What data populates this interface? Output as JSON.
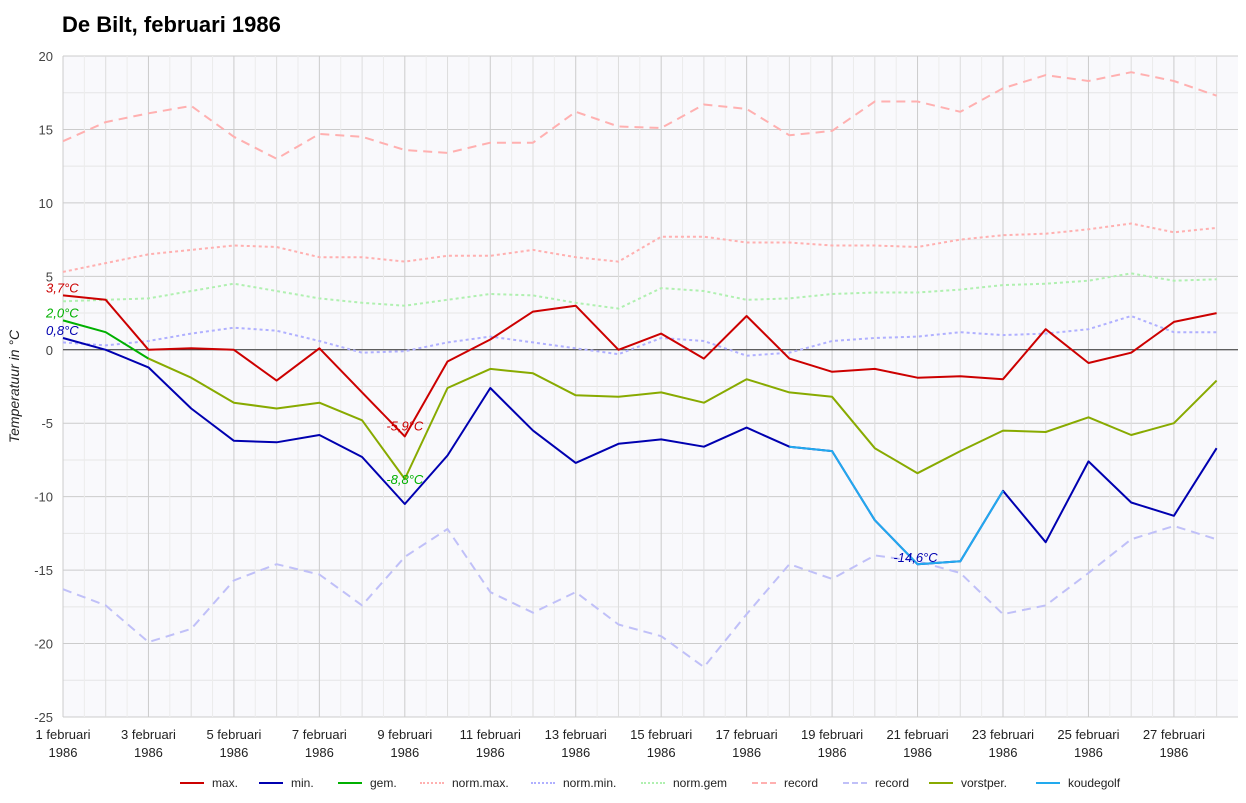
{
  "chart_data": {
    "type": "line",
    "title": "De Bilt, februari 1986",
    "xlabel": "",
    "ylabel": "Temperatuur in °C",
    "ylim": [
      -25,
      20
    ],
    "yticks": [
      20,
      15,
      10,
      5,
      0,
      -5,
      -10,
      -15,
      -20,
      -25
    ],
    "grid": true,
    "legend_position": "bottom",
    "days": [
      1,
      2,
      3,
      4,
      5,
      6,
      7,
      8,
      9,
      10,
      11,
      12,
      13,
      14,
      15,
      16,
      17,
      18,
      19,
      20,
      21,
      22,
      23,
      24,
      25,
      26,
      27,
      28
    ],
    "x_tick_labels": [
      {
        "day": 1,
        "line1": "1 februari",
        "line2": "1986"
      },
      {
        "day": 3,
        "line1": "3 februari",
        "line2": "1986"
      },
      {
        "day": 5,
        "line1": "5 februari",
        "line2": "1986"
      },
      {
        "day": 7,
        "line1": "7 februari",
        "line2": "1986"
      },
      {
        "day": 9,
        "line1": "9 februari",
        "line2": "1986"
      },
      {
        "day": 11,
        "line1": "11 februari",
        "line2": "1986"
      },
      {
        "day": 13,
        "line1": "13 februari",
        "line2": "1986"
      },
      {
        "day": 15,
        "line1": "15 februari",
        "line2": "1986"
      },
      {
        "day": 17,
        "line1": "17 februari",
        "line2": "1986"
      },
      {
        "day": 19,
        "line1": "19 februari",
        "line2": "1986"
      },
      {
        "day": 21,
        "line1": "21 februari",
        "line2": "1986"
      },
      {
        "day": 23,
        "line1": "23 februari",
        "line2": "1986"
      },
      {
        "day": 25,
        "line1": "25 februari",
        "line2": "1986"
      },
      {
        "day": 27,
        "line1": "27 februari",
        "line2": "1986"
      }
    ],
    "series": [
      {
        "key": "record_max",
        "name": "record",
        "color": "#ffb0b0",
        "style": "dashed",
        "values": [
          14.2,
          15.5,
          16.1,
          16.6,
          14.5,
          13.0,
          14.7,
          14.5,
          13.6,
          13.4,
          14.1,
          14.1,
          16.2,
          15.2,
          15.1,
          16.7,
          16.4,
          14.6,
          14.9,
          16.9,
          16.9,
          16.2,
          17.8,
          18.7,
          18.3,
          18.9,
          18.3,
          17.3
        ]
      },
      {
        "key": "norm_max",
        "name": "norm.max.",
        "color": "#ffb0b0",
        "style": "dotted",
        "values": [
          5.3,
          5.9,
          6.5,
          6.8,
          7.1,
          7.0,
          6.3,
          6.3,
          6.0,
          6.4,
          6.4,
          6.8,
          6.3,
          6.0,
          7.7,
          7.7,
          7.3,
          7.3,
          7.1,
          7.1,
          7.0,
          7.5,
          7.8,
          7.9,
          8.2,
          8.6,
          8.0,
          8.3
        ]
      },
      {
        "key": "norm_gem",
        "name": "norm.gem",
        "color": "#b0f0b0",
        "style": "dotted",
        "values": [
          3.3,
          3.4,
          3.5,
          4.0,
          4.5,
          4.0,
          3.5,
          3.2,
          3.0,
          3.4,
          3.8,
          3.7,
          3.2,
          2.8,
          4.2,
          4.0,
          3.4,
          3.5,
          3.8,
          3.9,
          3.9,
          4.1,
          4.4,
          4.5,
          4.7,
          5.2,
          4.7,
          4.8
        ]
      },
      {
        "key": "norm_min",
        "name": "norm.min.",
        "color": "#b0b0ff",
        "style": "dotted",
        "values": [
          0.5,
          0.3,
          0.6,
          1.1,
          1.5,
          1.3,
          0.6,
          -0.2,
          -0.1,
          0.5,
          0.9,
          0.5,
          0.1,
          -0.3,
          0.8,
          0.6,
          -0.4,
          -0.2,
          0.6,
          0.8,
          0.9,
          1.2,
          1.0,
          1.1,
          1.4,
          2.3,
          1.2,
          1.2
        ]
      },
      {
        "key": "record_min",
        "name": "record",
        "color": "#c0c0f8",
        "style": "dashed",
        "values": [
          -16.3,
          -17.4,
          -19.9,
          -19.0,
          -15.7,
          -14.6,
          -15.3,
          -17.4,
          -14.1,
          -12.2,
          -16.5,
          -17.9,
          -16.5,
          -18.7,
          -19.5,
          -21.6,
          -18.0,
          -14.6,
          -15.6,
          -14.0,
          -14.4,
          -15.2,
          -18.0,
          -17.4,
          -15.2,
          -12.9,
          -12.0,
          -12.9
        ]
      },
      {
        "key": "max",
        "name": "max.",
        "color": "#cc0000",
        "style": "solid",
        "values": [
          3.7,
          3.4,
          0.0,
          0.1,
          0.0,
          -2.1,
          0.1,
          -2.9,
          -5.9,
          -0.8,
          0.7,
          2.6,
          3.0,
          0.0,
          1.1,
          -0.6,
          2.3,
          -0.6,
          -1.5,
          -1.3,
          -1.9,
          -1.8,
          -2.0,
          1.4,
          -0.9,
          -0.2,
          1.9,
          2.5
        ]
      },
      {
        "key": "min",
        "name": "min.",
        "color": "#0000b0",
        "style": "solid",
        "values": [
          0.8,
          0.0,
          -1.2,
          -4.0,
          -6.2,
          -6.3,
          -5.8,
          -7.3,
          -10.5,
          -7.2,
          -2.6,
          -5.5,
          -7.7,
          -6.4,
          -6.1,
          -6.6,
          -5.3,
          -6.6,
          -6.9,
          -11.6,
          -14.6,
          -14.4,
          -9.6,
          -13.1,
          -7.6,
          -10.4,
          -11.3,
          -6.7
        ]
      },
      {
        "key": "gem",
        "name": "gem.",
        "color": "#00b000",
        "style": "solid",
        "values": [
          2.0,
          1.2,
          -0.6,
          null,
          null,
          null,
          null,
          null,
          null,
          null,
          null,
          null,
          null,
          null,
          null,
          null,
          null,
          null,
          null,
          null,
          null,
          null,
          null,
          null,
          null,
          null,
          null,
          null
        ]
      },
      {
        "key": "vorstper",
        "name": "vorstper.",
        "color": "#88aa00",
        "style": "solid",
        "values": [
          null,
          null,
          -0.6,
          -1.9,
          -3.6,
          -4.0,
          -3.6,
          -4.8,
          -8.8,
          -2.6,
          -1.3,
          -1.6,
          -3.1,
          -3.2,
          -2.9,
          -3.6,
          -2.0,
          -2.9,
          -3.2,
          -6.7,
          -8.4,
          -6.9,
          -5.5,
          -5.6,
          -4.6,
          -5.8,
          -5.0,
          -2.1
        ]
      },
      {
        "key": "koudegolf",
        "name": "koudegolf",
        "color": "#22aaee",
        "style": "solid",
        "values": [
          null,
          null,
          null,
          null,
          null,
          null,
          null,
          null,
          null,
          null,
          null,
          null,
          null,
          null,
          null,
          null,
          null,
          -6.6,
          -6.9,
          -11.6,
          -14.6,
          -14.4,
          -9.6,
          null,
          null,
          null,
          null,
          null
        ]
      }
    ],
    "annotations": [
      {
        "text": "3,7°C",
        "day": 1,
        "value": 3.7,
        "color": "#cc0000"
      },
      {
        "text": "2,0°C",
        "day": 1,
        "value": 2.0,
        "color": "#00b000"
      },
      {
        "text": "0,8°C",
        "day": 1,
        "value": 0.8,
        "color": "#0000b0"
      },
      {
        "text": "-5,9°C",
        "day": 9,
        "value": -5.9,
        "color": "#cc0000"
      },
      {
        "text": "-8,8°C",
        "day": 9,
        "value": -8.8,
        "color": "#00b000"
      },
      {
        "text": "-14,6°C",
        "day": 21,
        "value": -14.6,
        "color": "#0000b0"
      }
    ],
    "legend": [
      {
        "label": "max.",
        "color": "#cc0000",
        "style": "solid"
      },
      {
        "label": "min.",
        "color": "#0000b0",
        "style": "solid"
      },
      {
        "label": "gem.",
        "color": "#00b000",
        "style": "solid"
      },
      {
        "label": "norm.max.",
        "color": "#ffb0b0",
        "style": "dotted"
      },
      {
        "label": "norm.min.",
        "color": "#b0b0ff",
        "style": "dotted"
      },
      {
        "label": "norm.gem",
        "color": "#b0f0b0",
        "style": "dotted"
      },
      {
        "label": "record",
        "color": "#ffb0b0",
        "style": "dashed"
      },
      {
        "label": "record",
        "color": "#c0c0f8",
        "style": "dashed"
      },
      {
        "label": "vorstper.",
        "color": "#88aa00",
        "style": "solid"
      },
      {
        "label": "koudegolf",
        "color": "#22aaee",
        "style": "solid"
      }
    ]
  }
}
